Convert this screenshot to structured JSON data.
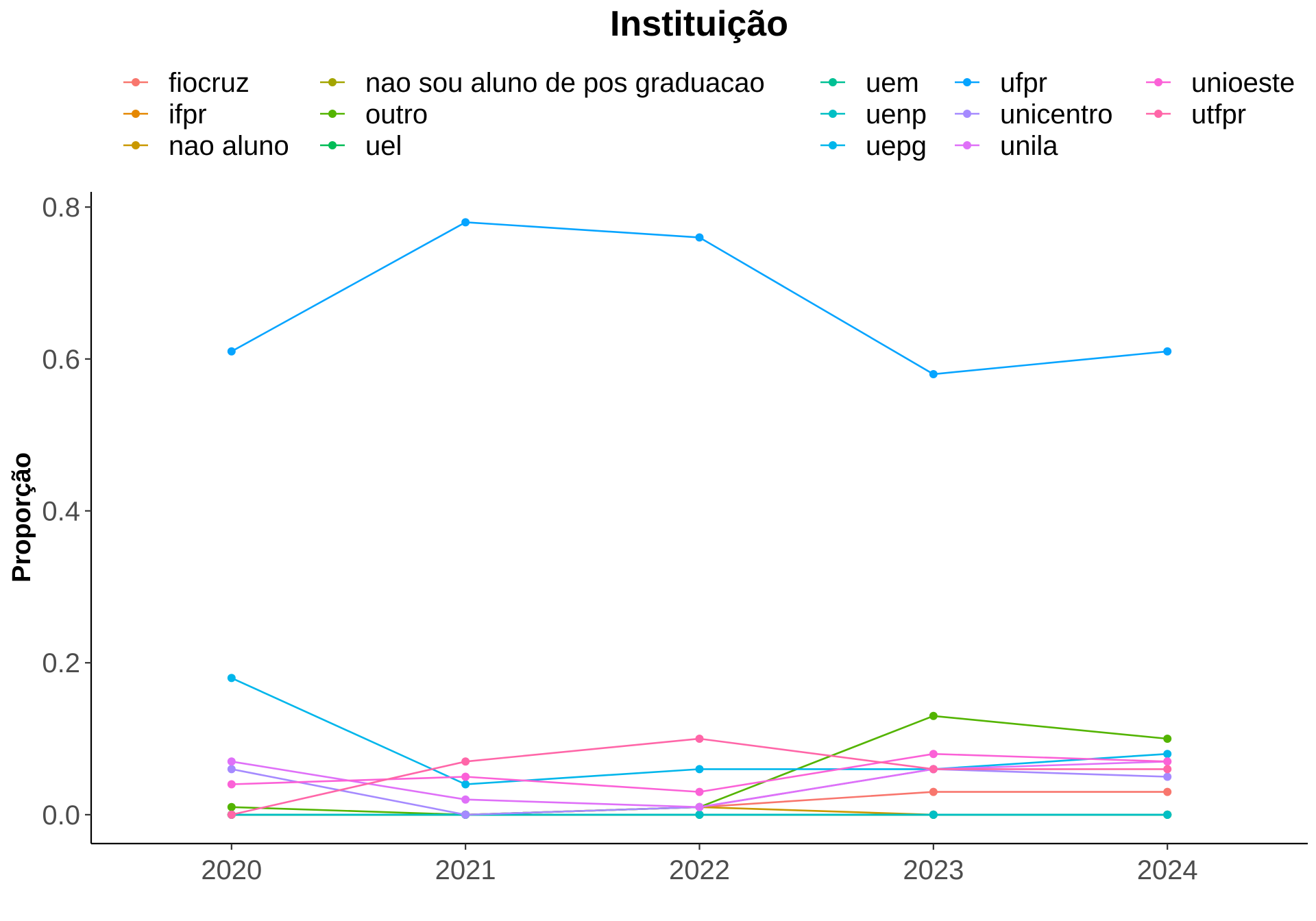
{
  "chart_data": {
    "type": "line",
    "title": "Instituição",
    "xlabel": "",
    "ylabel": "Proporção",
    "x": [
      2020,
      2021,
      2022,
      2023,
      2024
    ],
    "x_ticks": [
      "2020",
      "2021",
      "2022",
      "2023",
      "2024"
    ],
    "y_ticks": [
      "0.0",
      "0.2",
      "0.4",
      "0.6",
      "0.8"
    ],
    "ylim": [
      -0.038,
      0.82
    ],
    "xlim": [
      2019.4,
      2024.6
    ],
    "grid": false,
    "legend_position": "top",
    "series": [
      {
        "name": "fiocruz",
        "color": "#F8766D",
        "values": [
          0,
          0,
          0.01,
          0.03,
          0.03
        ]
      },
      {
        "name": "ifpr",
        "color": "#E58700",
        "values": [
          0,
          0,
          0,
          0,
          0
        ]
      },
      {
        "name": "nao aluno",
        "color": "#C99800",
        "values": [
          0,
          0,
          0.01,
          0,
          0
        ]
      },
      {
        "name": "nao sou aluno de pos graduacao",
        "color": "#A3A500",
        "values": [
          0,
          0,
          0,
          0,
          0
        ]
      },
      {
        "name": "outro",
        "color": "#53B400",
        "values": [
          0.01,
          0,
          0.01,
          0.13,
          0.1
        ]
      },
      {
        "name": "uel",
        "color": "#00BC56",
        "values": [
          0,
          0,
          0,
          0,
          0
        ]
      },
      {
        "name": "uem",
        "color": "#00C094",
        "values": [
          0,
          0,
          0,
          0,
          0
        ]
      },
      {
        "name": "uenp",
        "color": "#00BFC4",
        "values": [
          0,
          0,
          0,
          0,
          0
        ]
      },
      {
        "name": "uepg",
        "color": "#00B6EB",
        "values": [
          0.18,
          0.04,
          0.06,
          0.06,
          0.08
        ]
      },
      {
        "name": "ufpr",
        "color": "#06A4FF",
        "values": [
          0.61,
          0.78,
          0.76,
          0.58,
          0.61
        ]
      },
      {
        "name": "unicentro",
        "color": "#A58AFF",
        "values": [
          0.06,
          0,
          0.01,
          0.06,
          0.05
        ]
      },
      {
        "name": "unila",
        "color": "#DF70F8",
        "values": [
          0.07,
          0.02,
          0.01,
          0.06,
          0.07
        ]
      },
      {
        "name": "unioeste",
        "color": "#FB61D7",
        "values": [
          0.04,
          0.05,
          0.03,
          0.08,
          0.07
        ]
      },
      {
        "name": "utfpr",
        "color": "#FF66A8",
        "values": [
          0,
          0.07,
          0.1,
          0.06,
          0.06
        ]
      }
    ]
  }
}
